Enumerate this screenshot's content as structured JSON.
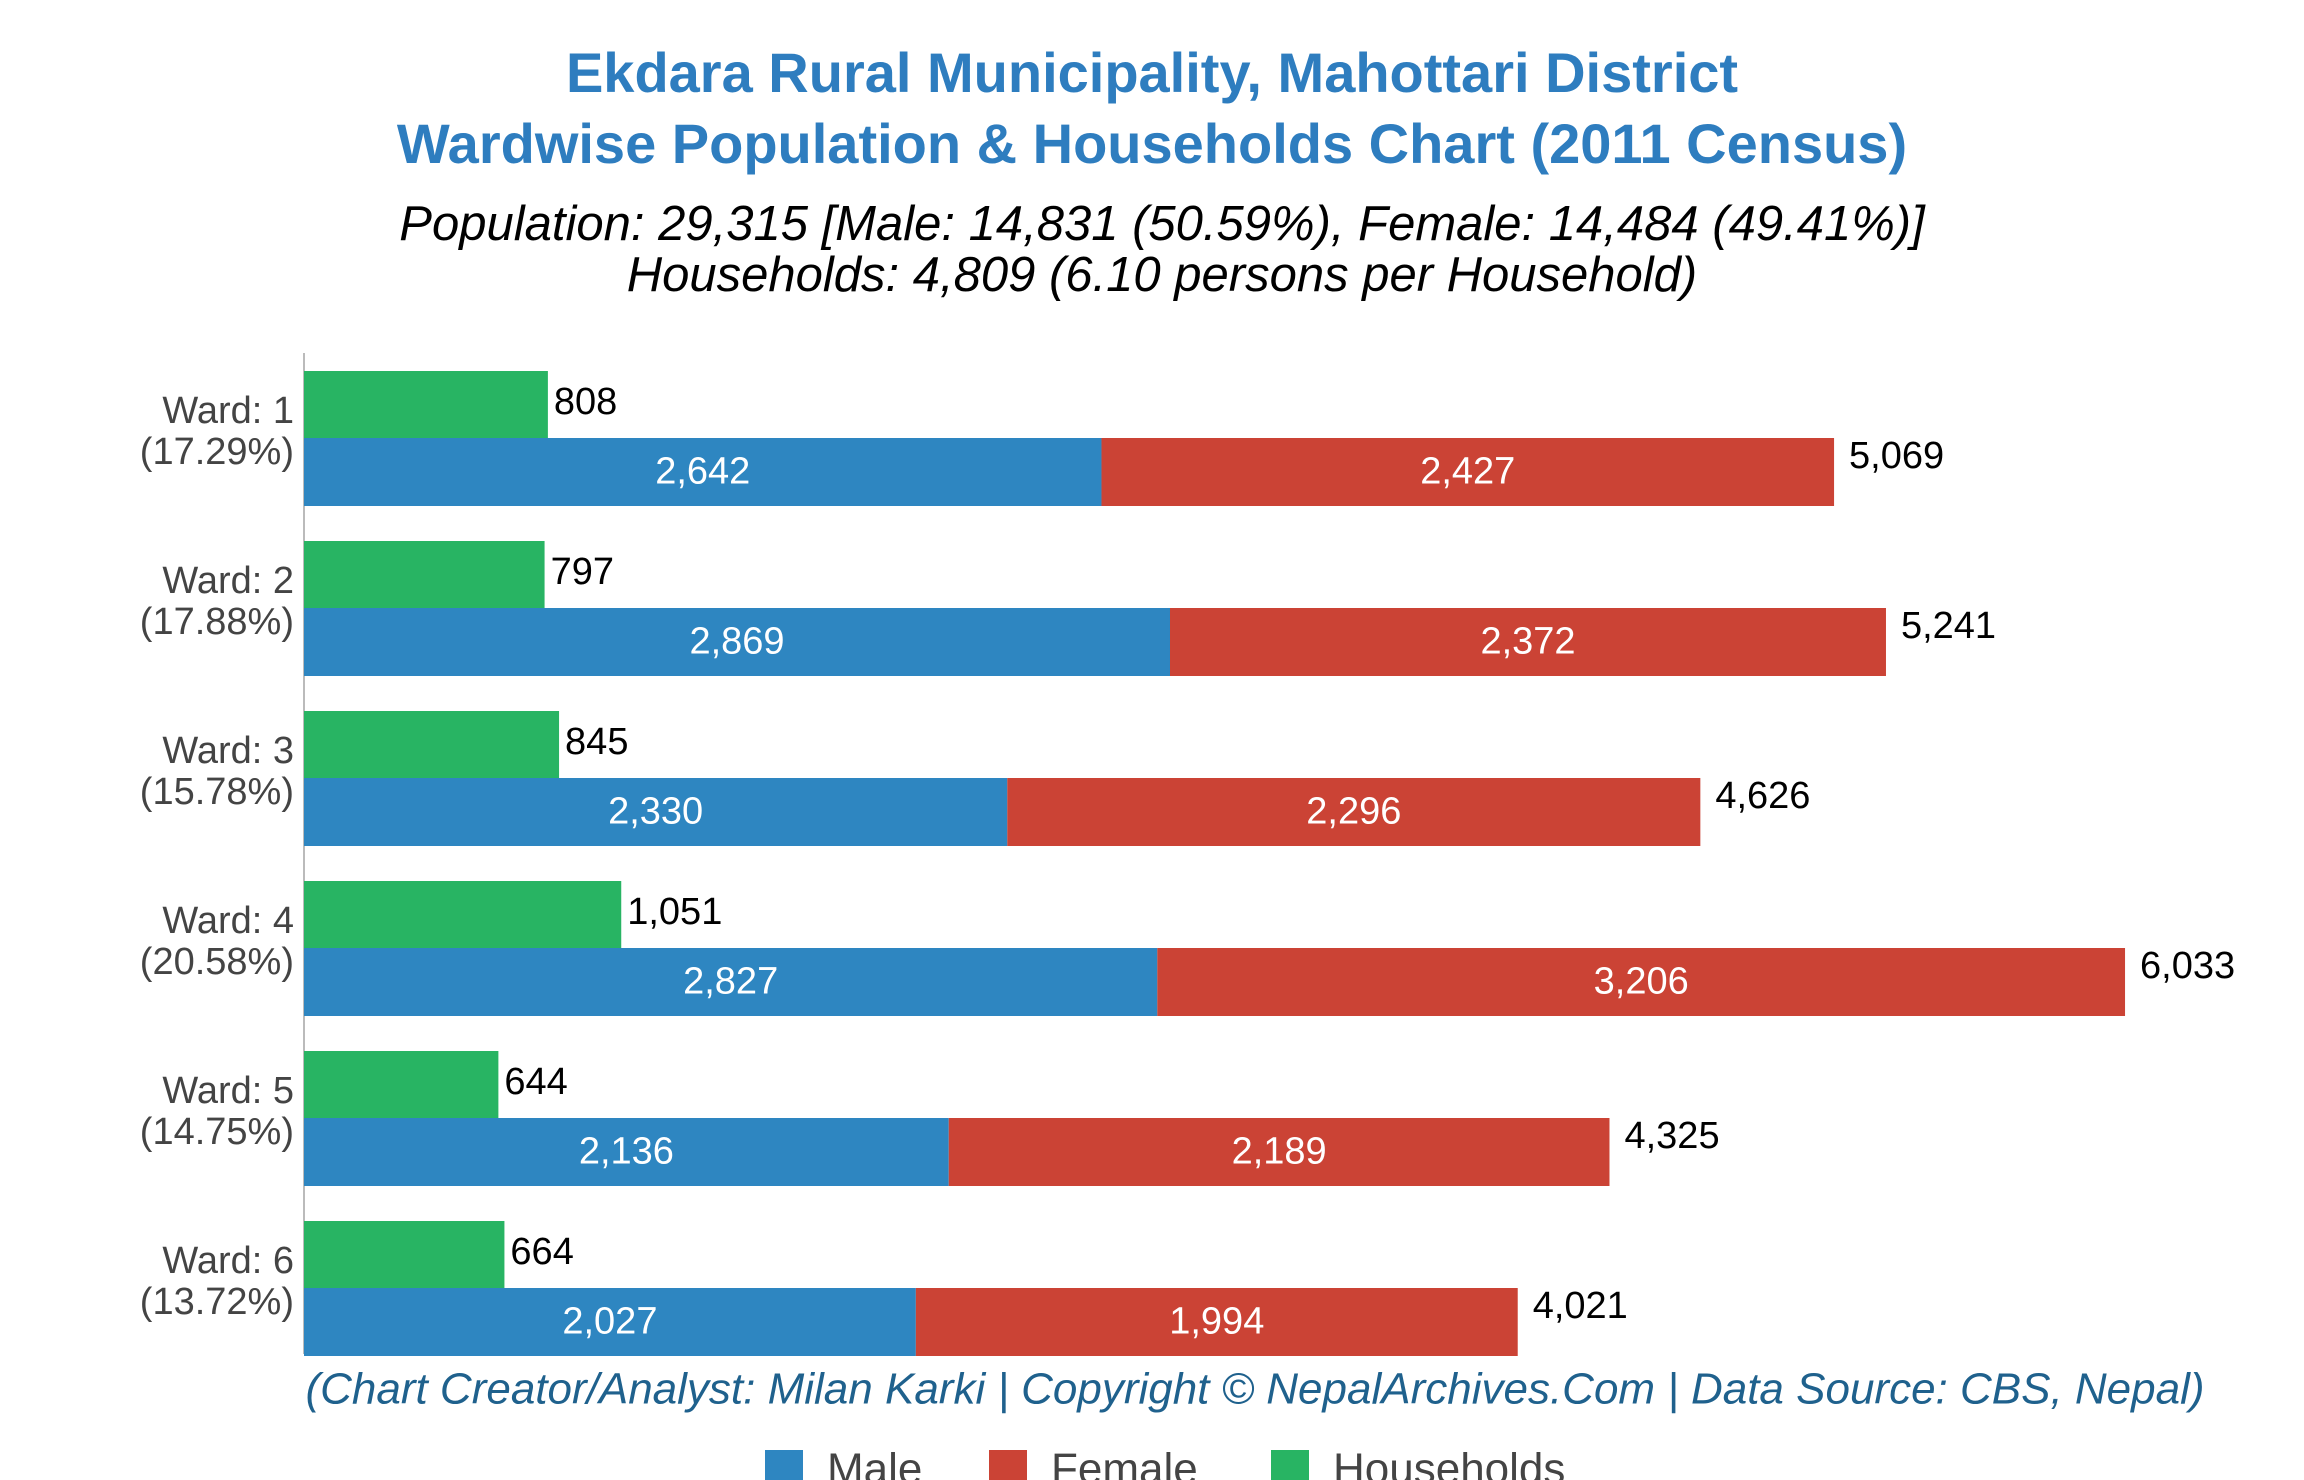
{
  "chart_data": {
    "type": "bar",
    "orientation": "horizontal",
    "title": [
      "Ekdara Rural Municipality, Mahottari District",
      "Wardwise Population & Households Chart (2011 Census)"
    ],
    "subtitle": [
      "Population: 29,315 [Male: 14,831 (50.59%), Female: 14,484 (49.41%)]",
      "Households: 4,809 (6.10 persons per Household)"
    ],
    "footer": "(Chart Creator/Analyst: Milan Karki | Copyright © NepalArchives.Com | Data Source: CBS, Nepal)",
    "categories": [
      "Ward: 1",
      "Ward: 2",
      "Ward: 3",
      "Ward: 4",
      "Ward: 5",
      "Ward: 6"
    ],
    "category_shares": [
      "(17.29%)",
      "(17.88%)",
      "(15.78%)",
      "(20.58%)",
      "(14.75%)",
      "(13.72%)"
    ],
    "xlim": [
      0,
      6500
    ],
    "series": [
      {
        "name": "Male",
        "color": "#2e86c1",
        "stack": "population",
        "values": [
          2642,
          2869,
          2330,
          2827,
          2136,
          2027
        ],
        "value_labels": [
          "2,642",
          "2,869",
          "2,330",
          "2,827",
          "2,136",
          "2,027"
        ]
      },
      {
        "name": "Female",
        "color": "#cb4335",
        "stack": "population",
        "values": [
          2427,
          2372,
          2296,
          3206,
          2189,
          1994
        ],
        "value_labels": [
          "2,427",
          "2,372",
          "2,296",
          "3,206",
          "2,189",
          "1,994"
        ]
      },
      {
        "name": "Households",
        "color": "#28b463",
        "stack": "households",
        "values": [
          808,
          797,
          845,
          1051,
          644,
          664
        ],
        "value_labels": [
          "808",
          "797",
          "845",
          "1,051",
          "644",
          "664"
        ]
      }
    ],
    "totals": [
      5069,
      5241,
      4626,
      6033,
      4325,
      4021
    ],
    "total_labels": [
      "5,069",
      "5,241",
      "4,626",
      "6,033",
      "4,325",
      "4,021"
    ]
  }
}
